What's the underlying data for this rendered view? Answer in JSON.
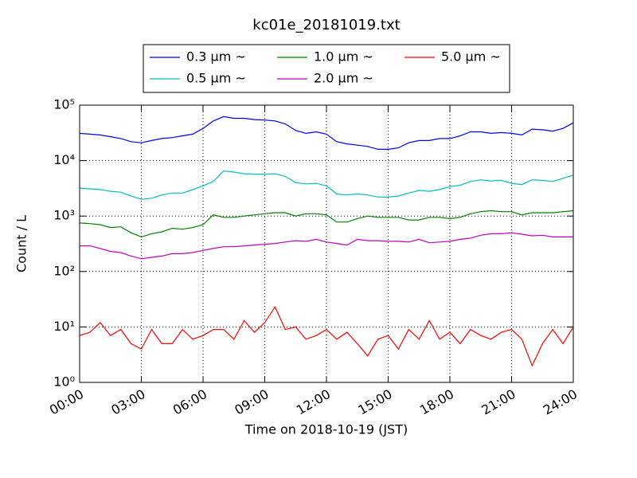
{
  "chart_data": {
    "type": "line",
    "title": "kc01e_20181019.txt",
    "xlabel": "Time on 2018-10-19 (JST)",
    "ylabel": "Count / L",
    "yscale": "log",
    "grid": true,
    "legend": "upper center",
    "xlim": [
      "00:00",
      "24:00"
    ],
    "xticks": [
      "00:00",
      "03:00",
      "06:00",
      "09:00",
      "12:00",
      "15:00",
      "18:00",
      "21:00",
      "24:00"
    ],
    "ylim": [
      1,
      100000
    ],
    "yticks": [
      {
        "value": 1,
        "label": "10⁰"
      },
      {
        "value": 10,
        "label": "10¹"
      },
      {
        "value": 100,
        "label": "10²"
      },
      {
        "value": 1000,
        "label": "10³"
      },
      {
        "value": 10000,
        "label": "10⁴"
      },
      {
        "value": 100000,
        "label": "10⁵"
      }
    ],
    "x": [
      "00:00",
      "00:30",
      "01:00",
      "01:30",
      "02:00",
      "02:30",
      "03:00",
      "03:30",
      "04:00",
      "04:30",
      "05:00",
      "05:30",
      "06:00",
      "06:30",
      "07:00",
      "07:30",
      "08:00",
      "08:30",
      "09:00",
      "09:30",
      "10:00",
      "10:30",
      "11:00",
      "11:30",
      "12:00",
      "12:30",
      "13:00",
      "13:30",
      "14:00",
      "14:30",
      "15:00",
      "15:30",
      "16:00",
      "16:30",
      "17:00",
      "17:30",
      "18:00",
      "18:30",
      "19:00",
      "19:30",
      "20:00",
      "20:30",
      "21:00",
      "21:30",
      "22:00",
      "22:30",
      "23:00",
      "23:30",
      "24:00"
    ],
    "series": [
      {
        "name": "0.3 μm ~",
        "color": "#0000ff",
        "values": [
          31000,
          30000,
          29000,
          27000,
          25000,
          22000,
          21000,
          23000,
          25000,
          26000,
          28000,
          30000,
          38000,
          52000,
          62000,
          58000,
          58000,
          55000,
          54000,
          52000,
          46000,
          35000,
          31000,
          33000,
          30000,
          22000,
          20000,
          19000,
          18000,
          16000,
          16000,
          17000,
          21000,
          23000,
          23000,
          25000,
          25000,
          28000,
          33000,
          33000,
          31000,
          32000,
          31000,
          29000,
          37000,
          36000,
          34000,
          38000,
          48000
        ]
      },
      {
        "name": "0.5 μm ~",
        "color": "#00bfbf",
        "values": [
          3200,
          3100,
          3000,
          2800,
          2700,
          2300,
          2000,
          2100,
          2400,
          2600,
          2600,
          3000,
          3500,
          4200,
          6500,
          6200,
          5800,
          5700,
          5700,
          5800,
          5200,
          4000,
          3800,
          3900,
          3500,
          2500,
          2400,
          2500,
          2400,
          2200,
          2200,
          2300,
          2600,
          2900,
          2800,
          3000,
          3400,
          3600,
          4200,
          4500,
          4300,
          4400,
          3900,
          3700,
          4500,
          4400,
          4200,
          4800,
          5500
        ]
      },
      {
        "name": "1.0 μm ~",
        "color": "#008000",
        "values": [
          750,
          730,
          700,
          620,
          640,
          500,
          420,
          480,
          520,
          600,
          580,
          620,
          700,
          1050,
          950,
          950,
          1000,
          1050,
          1100,
          1150,
          1150,
          1000,
          1100,
          1100,
          1050,
          780,
          780,
          900,
          1000,
          950,
          950,
          950,
          850,
          850,
          950,
          950,
          900,
          950,
          1100,
          1200,
          1250,
          1200,
          1200,
          1050,
          1150,
          1150,
          1150,
          1200,
          1250
        ]
      },
      {
        "name": "2.0 μm ~",
        "color": "#bf00bf",
        "values": [
          290,
          290,
          260,
          230,
          220,
          190,
          170,
          180,
          190,
          210,
          210,
          220,
          240,
          260,
          280,
          280,
          290,
          300,
          310,
          320,
          340,
          360,
          350,
          380,
          340,
          320,
          300,
          380,
          360,
          360,
          350,
          350,
          340,
          380,
          330,
          340,
          350,
          380,
          400,
          450,
          480,
          480,
          500,
          470,
          440,
          450,
          420,
          420,
          420
        ]
      },
      {
        "name": "5.0 μm ~",
        "color": "#ff0000",
        "values": [
          7,
          8,
          12,
          7,
          9,
          5,
          4,
          9,
          5,
          5,
          9,
          6,
          7,
          9,
          9,
          6,
          13,
          8,
          12,
          23,
          9,
          10,
          6,
          7,
          9,
          6,
          8,
          5,
          3,
          6,
          7,
          4,
          9,
          6,
          13,
          6,
          8,
          5,
          9,
          7,
          6,
          8,
          9,
          6,
          2,
          5,
          9,
          5,
          10
        ]
      }
    ]
  }
}
